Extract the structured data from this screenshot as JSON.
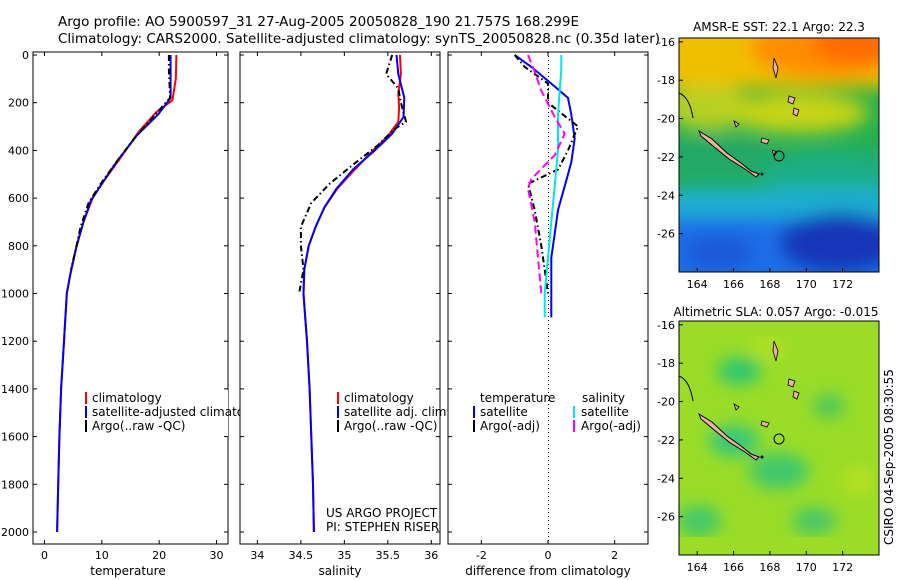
{
  "figure": {
    "title_line1": "Argo profile: AO 5900597_31 27-Aug-2005 20050828_190 21.757S 168.299E",
    "title_line2": "Climatology: CARS2000. Satellite-adjusted climatology: synTS_20050828.nc (0.35d later)",
    "credit_line1": "US ARGO PROJECT",
    "credit_line2": "PI: STEPHEN RISER",
    "stamp": "CSIRO 04-Sep-2005 08:30:55"
  },
  "chart_data": [
    {
      "type": "line",
      "id": "temperature",
      "xlabel": "temperature",
      "ylabel": "",
      "xlim": [
        -2,
        32
      ],
      "ylim": [
        2050,
        0
      ],
      "y_reversed": true,
      "xticks": [
        0,
        10,
        20,
        30
      ],
      "yticks": [
        0,
        200,
        400,
        600,
        800,
        1000,
        1200,
        1400,
        1600,
        1800,
        2000
      ],
      "legend": [
        "climatology",
        "satellite-adjusted climatolog",
        "Argo(..raw -QC)"
      ],
      "legend_position": "lower-right",
      "series": [
        {
          "name": "climatology",
          "color": "#ff0000",
          "dash": "",
          "points": [
            [
              23.0,
              0
            ],
            [
              22.9,
              100
            ],
            [
              22.3,
              190
            ],
            [
              19.5,
              240
            ],
            [
              16.5,
              320
            ],
            [
              13.0,
              440
            ],
            [
              10.3,
              530
            ],
            [
              8.4,
              600
            ],
            [
              6.8,
              700
            ],
            [
              5.6,
              800
            ],
            [
              4.5,
              920
            ],
            [
              3.9,
              1000
            ],
            [
              3.4,
              1200
            ],
            [
              2.9,
              1400
            ],
            [
              2.6,
              1600
            ],
            [
              2.4,
              1800
            ],
            [
              2.2,
              2000
            ]
          ]
        },
        {
          "name": "satellite-adjusted climatolog",
          "color": "#0000ff",
          "dash": "",
          "points": [
            [
              22.0,
              0
            ],
            [
              22.0,
              100
            ],
            [
              22.0,
              180
            ],
            [
              19.8,
              250
            ],
            [
              16.0,
              340
            ],
            [
              12.5,
              450
            ],
            [
              10.0,
              540
            ],
            [
              8.1,
              610
            ],
            [
              6.8,
              700
            ],
            [
              5.6,
              800
            ],
            [
              4.5,
              920
            ],
            [
              3.9,
              1000
            ],
            [
              3.4,
              1200
            ],
            [
              2.9,
              1400
            ],
            [
              2.6,
              1600
            ],
            [
              2.4,
              1800
            ],
            [
              2.2,
              2000
            ]
          ]
        },
        {
          "name": "Argo(..raw -QC)",
          "color": "#000000",
          "dash": "6,3,1.5,3",
          "points": [
            [
              21.7,
              0
            ],
            [
              21.7,
              60
            ],
            [
              21.9,
              180
            ],
            [
              19.3,
              250
            ],
            [
              16.0,
              340
            ],
            [
              12.8,
              440
            ],
            [
              9.8,
              540
            ],
            [
              7.7,
              620
            ],
            [
              6.3,
              720
            ],
            [
              5.6,
              800
            ],
            [
              4.6,
              900
            ]
          ]
        }
      ]
    },
    {
      "type": "line",
      "id": "salinity",
      "xlabel": "salinity",
      "ylabel": "",
      "xlim": [
        33.8,
        36.1
      ],
      "ylim": [
        2050,
        0
      ],
      "y_reversed": true,
      "xticks": [
        34,
        34.5,
        35,
        35.5,
        36
      ],
      "legend": [
        "climatology",
        "satellite adj. clim.",
        "Argo(..raw -QC)"
      ],
      "legend_position": "lower-right",
      "series": [
        {
          "name": "climatology",
          "color": "#ff0000",
          "dash": "",
          "points": [
            [
              35.64,
              0
            ],
            [
              35.65,
              80
            ],
            [
              35.62,
              160
            ],
            [
              35.63,
              220
            ],
            [
              35.62,
              280
            ],
            [
              35.5,
              340
            ],
            [
              35.33,
              400
            ],
            [
              35.12,
              480
            ],
            [
              34.92,
              560
            ],
            [
              34.77,
              640
            ],
            [
              34.67,
              720
            ],
            [
              34.59,
              800
            ],
            [
              34.54,
              900
            ],
            [
              34.53,
              1000
            ],
            [
              34.55,
              1100
            ],
            [
              34.57,
              1200
            ],
            [
              34.6,
              1400
            ],
            [
              34.62,
              1600
            ],
            [
              34.64,
              1800
            ],
            [
              34.65,
              2000
            ]
          ]
        },
        {
          "name": "satellite adj. clim.",
          "color": "#0000ff",
          "dash": "",
          "points": [
            [
              35.6,
              0
            ],
            [
              35.62,
              80
            ],
            [
              35.69,
              180
            ],
            [
              35.68,
              260
            ],
            [
              35.55,
              330
            ],
            [
              35.35,
              400
            ],
            [
              35.1,
              480
            ],
            [
              34.91,
              560
            ],
            [
              34.77,
              640
            ],
            [
              34.67,
              720
            ],
            [
              34.59,
              800
            ],
            [
              34.54,
              900
            ],
            [
              34.53,
              1000
            ],
            [
              34.55,
              1100
            ],
            [
              34.57,
              1200
            ],
            [
              34.6,
              1400
            ],
            [
              34.62,
              1600
            ],
            [
              34.64,
              1800
            ],
            [
              34.65,
              2000
            ]
          ]
        },
        {
          "name": "Argo(..raw -QC)",
          "color": "#000000",
          "dash": "6,3,1.5,3",
          "points": [
            [
              35.55,
              0
            ],
            [
              35.48,
              80
            ],
            [
              35.62,
              140
            ],
            [
              35.65,
              200
            ],
            [
              35.71,
              280
            ],
            [
              35.58,
              310
            ],
            [
              35.38,
              380
            ],
            [
              35.1,
              460
            ],
            [
              34.83,
              540
            ],
            [
              34.62,
              620
            ],
            [
              34.5,
              720
            ],
            [
              34.5,
              800
            ],
            [
              34.53,
              900
            ],
            [
              34.48,
              1000
            ]
          ]
        }
      ]
    },
    {
      "type": "line",
      "id": "difference",
      "xlabel": "difference from climatology",
      "ylabel": "",
      "xlim": [
        -3,
        3
      ],
      "ylim": [
        2050,
        0
      ],
      "y_reversed": true,
      "xticks": [
        -2,
        0,
        2
      ],
      "legend_headers": [
        "temperature",
        "salinity"
      ],
      "legend": [
        "satellite",
        "Argo(-adj)",
        "satellite",
        "Argo(-adj)"
      ],
      "legend_position": "lower",
      "series": [
        {
          "name": "satellite",
          "group": "temperature",
          "color": "#0000ff",
          "dash": "",
          "points": [
            [
              -1.0,
              0
            ],
            [
              -0.5,
              50
            ],
            [
              0.1,
              120
            ],
            [
              0.6,
              180
            ],
            [
              0.7,
              250
            ],
            [
              0.8,
              350
            ],
            [
              0.7,
              450
            ],
            [
              0.5,
              550
            ],
            [
              0.3,
              650
            ],
            [
              0.2,
              750
            ],
            [
              0.1,
              850
            ],
            [
              0.1,
              1000
            ],
            [
              0.1,
              1100
            ]
          ]
        },
        {
          "name": "Argo(-adj)",
          "group": "temperature",
          "color": "#000000",
          "dash": "6,3,1.5,3",
          "points": [
            [
              -1.0,
              0
            ],
            [
              -0.7,
              50
            ],
            [
              0.0,
              120
            ],
            [
              0.0,
              200
            ],
            [
              0.9,
              300
            ],
            [
              0.6,
              400
            ],
            [
              0.3,
              480
            ],
            [
              -0.6,
              540
            ],
            [
              -0.4,
              650
            ],
            [
              -0.2,
              800
            ],
            [
              -0.1,
              900
            ],
            [
              0.0,
              1000
            ]
          ]
        },
        {
          "name": "satellite",
          "group": "salinity",
          "color": "#00e5ee",
          "dash": "",
          "points": [
            [
              0.4,
              0
            ],
            [
              0.4,
              60
            ],
            [
              0.35,
              150
            ],
            [
              0.3,
              250
            ],
            [
              0.3,
              400
            ],
            [
              0.2,
              550
            ],
            [
              0.1,
              700
            ],
            [
              0.0,
              850
            ],
            [
              -0.1,
              1000
            ],
            [
              -0.1,
              1100
            ]
          ]
        },
        {
          "name": "Argo(-adj)",
          "group": "salinity",
          "color": "#ff00ff",
          "dash": "8,4",
          "points": [
            [
              -0.6,
              0
            ],
            [
              -0.4,
              70
            ],
            [
              -0.2,
              150
            ],
            [
              0.2,
              260
            ],
            [
              0.5,
              330
            ],
            [
              0.2,
              420
            ],
            [
              -0.5,
              520
            ],
            [
              -0.6,
              560
            ],
            [
              -0.4,
              700
            ],
            [
              -0.3,
              850
            ],
            [
              -0.2,
              1000
            ]
          ]
        }
      ]
    },
    {
      "type": "heatmap",
      "id": "sst_map",
      "title": "AMSR-E SST: 22.1 Argo: 22.3",
      "xlim": [
        163,
        174
      ],
      "ylim": [
        -28,
        -15.8
      ],
      "xticks": [
        164,
        166,
        168,
        170,
        172
      ],
      "yticks": [
        -26,
        -24,
        -22,
        -20,
        -18,
        -16
      ],
      "colormap": "jet"
    },
    {
      "type": "heatmap",
      "id": "sla_map",
      "title": "Altimetric SLA: 0.057 Argo: -0.015",
      "xlim": [
        163,
        174
      ],
      "ylim": [
        -28,
        -15.8
      ],
      "xticks": [
        164,
        166,
        168,
        170,
        172
      ],
      "yticks": [
        -26,
        -24,
        -22,
        -20,
        -18,
        -16
      ],
      "colormap": "jet"
    }
  ]
}
